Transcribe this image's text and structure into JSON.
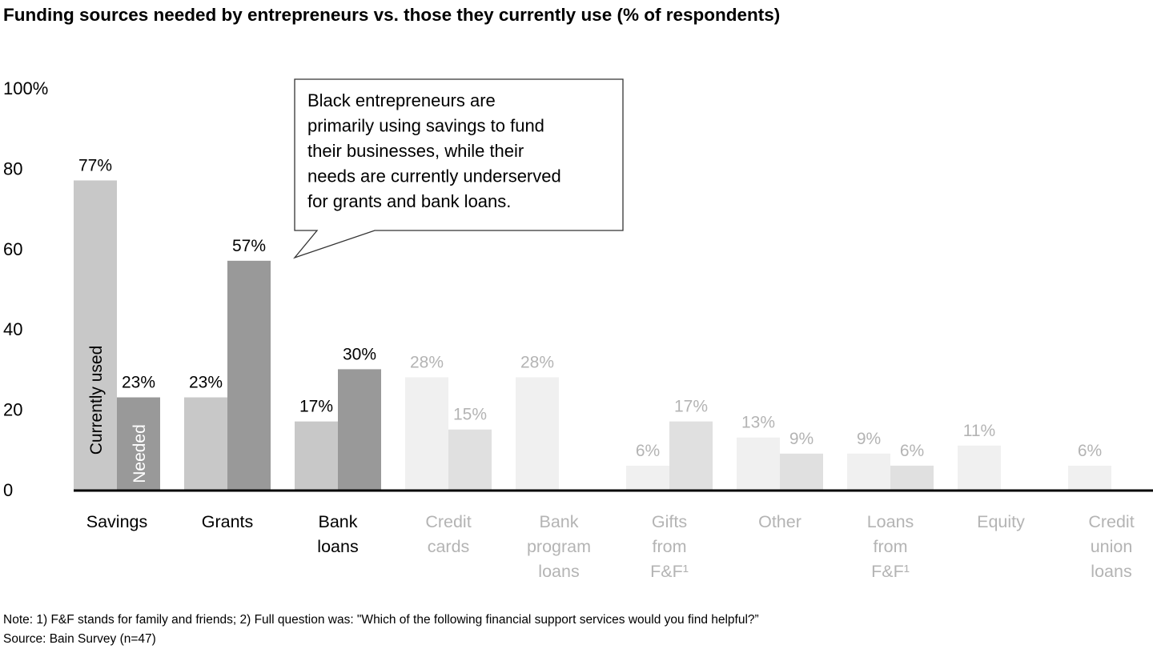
{
  "chart_data": {
    "type": "bar",
    "title": "Funding sources needed by entrepreneurs vs. those they currently use (% of respondents)",
    "xlabel": "",
    "ylabel": "",
    "ylim": [
      0,
      100
    ],
    "yticks": [
      "0",
      "20",
      "40",
      "60",
      "80",
      "100%"
    ],
    "grid": false,
    "categories": [
      [
        "Savings"
      ],
      [
        "Grants"
      ],
      [
        "Bank",
        "loans"
      ],
      [
        "Credit",
        "cards"
      ],
      [
        "Bank",
        "program",
        "loans"
      ],
      [
        "Gifts",
        "from",
        "F&F¹"
      ],
      [
        "Other"
      ],
      [
        "Loans",
        "from",
        "F&F¹"
      ],
      [
        "Equity"
      ],
      [
        "Credit",
        "union",
        "loans"
      ]
    ],
    "highlighted": [
      true,
      true,
      true,
      false,
      false,
      false,
      false,
      false,
      false,
      false
    ],
    "series": [
      {
        "name": "Currently used",
        "values": [
          77,
          23,
          17,
          28,
          28,
          6,
          13,
          9,
          11,
          6
        ],
        "color": "#c8c8c8",
        "faded_color": "#f0f0f0"
      },
      {
        "name": "Needed",
        "values": [
          23,
          57,
          30,
          15,
          null,
          17,
          9,
          6,
          null,
          null
        ],
        "color": "#999999",
        "faded_color": "#e0e0e0"
      }
    ],
    "data_labels": {
      "currently_used": [
        "77%",
        "23%",
        "17%",
        "28%",
        "28%",
        "6%",
        "13%",
        "9%",
        "11%",
        "6%"
      ],
      "needed": [
        "23%",
        "57%",
        "30%",
        "15%",
        null,
        "17%",
        "9%",
        "6%",
        null,
        null
      ]
    },
    "annotation": [
      "Black entrepreneurs are",
      "primarily using savings to fund",
      "their businesses, while their",
      "needs are currently underserved",
      "for grants and bank loans."
    ],
    "label_color_highlight": "#000000",
    "label_color_faded": "#b4b4b4"
  },
  "notes": {
    "note": "Note: 1) F&F stands for family and friends; 2) Full question was: \"Which of the following financial support services would you find helpful?”",
    "source": "Source: Bain Survey (n=47)"
  }
}
